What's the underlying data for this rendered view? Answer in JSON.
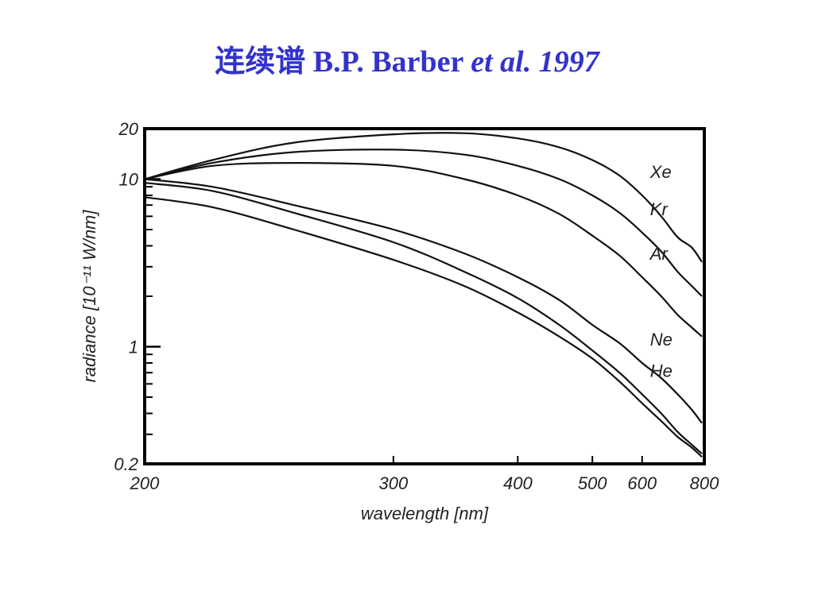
{
  "page_title": {
    "main": "连续谱 B.P. Barber ",
    "italic": "et al.",
    "year": " 1997"
  },
  "chart_data": {
    "type": "line",
    "title": "",
    "xlabel": "wavelength   [nm]",
    "ylabel": "radiance [10⁻¹¹ W/nm]",
    "x_scale": "reciprocal",
    "y_scale": "log",
    "xlim": [
      200,
      800
    ],
    "ylim": [
      0.2,
      20
    ],
    "x_ticks": [
      200,
      300,
      400,
      500,
      600,
      800
    ],
    "x_tick_labels": [
      "200",
      "300",
      "400",
      "500",
      "600",
      "800"
    ],
    "y_ticks": [
      0.2,
      1,
      10,
      20
    ],
    "y_tick_labels": [
      "0.2",
      "1",
      "10",
      "20"
    ],
    "grid": false,
    "legend": "inline labels at right",
    "series": [
      {
        "name": "Xe",
        "x": [
          200,
          220,
          250,
          300,
          350,
          400,
          450,
          500,
          550,
          600,
          650,
          700,
          750,
          790
        ],
        "y": [
          10,
          13,
          16.5,
          18.5,
          18.8,
          17.5,
          15.5,
          13,
          10.5,
          8,
          6,
          4.5,
          3.9,
          3.2
        ]
      },
      {
        "name": "Kr",
        "x": [
          200,
          220,
          250,
          300,
          350,
          400,
          450,
          500,
          550,
          600,
          650,
          700,
          750,
          790
        ],
        "y": [
          10,
          12.5,
          14.5,
          15,
          14,
          12,
          10,
          8,
          6.3,
          4.8,
          3.7,
          2.8,
          2.3,
          2
        ]
      },
      {
        "name": "Ar",
        "x": [
          200,
          220,
          250,
          300,
          350,
          400,
          450,
          500,
          550,
          600,
          650,
          700,
          750,
          790
        ],
        "y": [
          10,
          12,
          12.5,
          12,
          10,
          8,
          6.2,
          4.6,
          3.5,
          2.6,
          2,
          1.55,
          1.3,
          1.15
        ]
      },
      {
        "name": "Ne",
        "x": [
          200,
          220,
          250,
          300,
          350,
          400,
          450,
          500,
          550,
          600,
          650,
          700,
          750,
          790
        ],
        "y": [
          10,
          9,
          7,
          5,
          3.6,
          2.6,
          1.9,
          1.35,
          1.05,
          0.8,
          0.65,
          0.52,
          0.42,
          0.35
        ]
      },
      {
        "name": "He",
        "x": [
          200,
          220,
          250,
          300,
          350,
          400,
          450,
          500,
          550,
          600,
          650,
          700,
          750,
          790
        ],
        "y": [
          9.5,
          8.5,
          6.3,
          4.2,
          2.8,
          1.95,
          1.35,
          0.95,
          0.7,
          0.52,
          0.4,
          0.31,
          0.26,
          0.23
        ]
      },
      {
        "name": "",
        "x": [
          200,
          220,
          250,
          300,
          350,
          400,
          450,
          500,
          550,
          600,
          650,
          700,
          750,
          790
        ],
        "y": [
          7.8,
          6.8,
          5,
          3.3,
          2.3,
          1.6,
          1.15,
          0.85,
          0.62,
          0.46,
          0.36,
          0.29,
          0.25,
          0.22
        ]
      }
    ]
  }
}
